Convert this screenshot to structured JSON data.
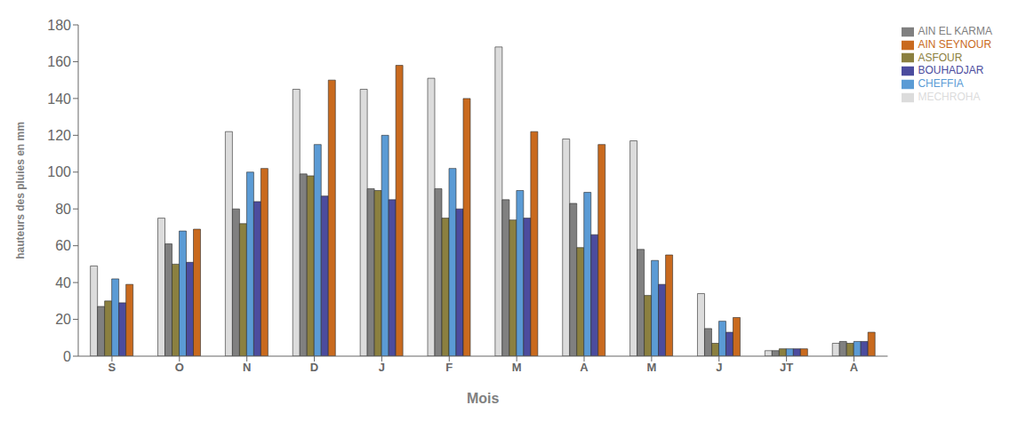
{
  "chart_data": {
    "type": "bar",
    "categories": [
      "S",
      "O",
      "N",
      "D",
      "J",
      "F",
      "M",
      "A",
      "M",
      "J",
      "JT",
      "A"
    ],
    "series": [
      {
        "name": "MECHROHA",
        "color": "#dcdcdc",
        "values": [
          49,
          75,
          122,
          145,
          145,
          151,
          168,
          118,
          117,
          34,
          3,
          7
        ]
      },
      {
        "name": "AIN EL KARMA",
        "color": "#808080",
        "values": [
          27,
          61,
          80,
          99,
          91,
          91,
          85,
          83,
          58,
          15,
          3,
          8
        ]
      },
      {
        "name": "ASFOUR",
        "color": "#8b8040",
        "values": [
          30,
          50,
          72,
          98,
          90,
          75,
          74,
          59,
          33,
          7,
          4,
          7
        ]
      },
      {
        "name": "CHEFFIA",
        "color": "#5b9bd5",
        "values": [
          42,
          68,
          100,
          115,
          120,
          102,
          90,
          89,
          52,
          19,
          4,
          8
        ]
      },
      {
        "name": "BOUHADJAR",
        "color": "#4c4c9e",
        "values": [
          29,
          51,
          84,
          87,
          85,
          80,
          75,
          66,
          39,
          13,
          4,
          8
        ]
      },
      {
        "name": "AIN SEYNOUR",
        "color": "#c96a1e",
        "values": [
          39,
          69,
          102,
          150,
          158,
          140,
          122,
          115,
          55,
          21,
          4,
          13
        ]
      }
    ],
    "xlabel": "Mois",
    "ylabel": "hauteurs des pluies en mm",
    "ylim": [
      0,
      180
    ],
    "yticks": [
      0,
      20,
      40,
      60,
      80,
      100,
      120,
      140,
      160,
      180
    ],
    "grid": false,
    "legend": "upper right"
  }
}
